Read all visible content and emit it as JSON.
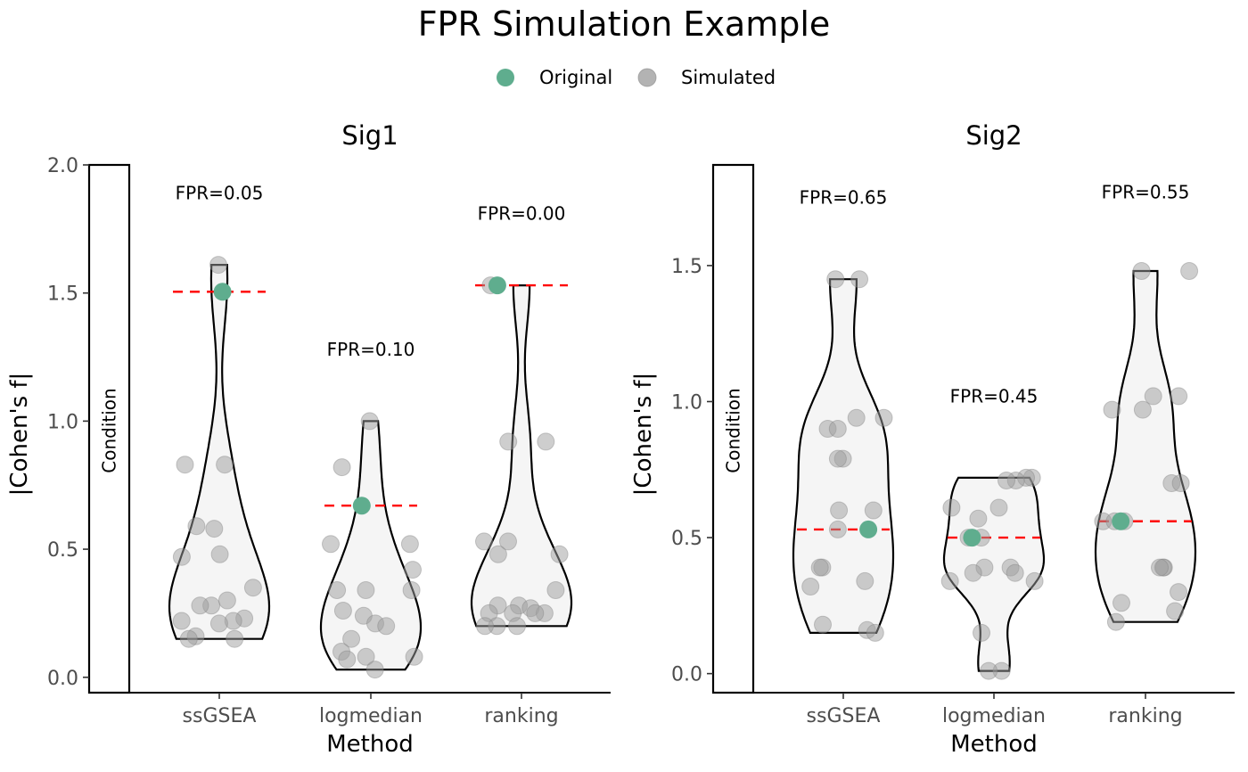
{
  "chart_data": {
    "type": "violin",
    "title": "FPR Simulation Example",
    "legend": {
      "position": "top",
      "items": [
        {
          "label": "Original",
          "color": "#5fad8e"
        },
        {
          "label": "Simulated",
          "color": "#a6a6a6"
        }
      ]
    },
    "xlabel": "Method",
    "ylabel": "|Cohen's f|",
    "strip_label": "Condition",
    "categories": [
      "ssGSEA",
      "logmedian",
      "ranking"
    ],
    "colors": {
      "original": "#5fad8e",
      "simulated": "#9e9e9e",
      "reference_line": "#ff0000",
      "violin_fill": "#f5f5f5"
    },
    "panels": [
      {
        "name": "Sig1",
        "ylim": [
          -0.06,
          2.0
        ],
        "yticks": [
          0.0,
          0.5,
          1.0,
          1.5,
          2.0
        ],
        "ytick_labels": [
          "0.0",
          "0.5",
          "1.0",
          "1.5",
          "2.0"
        ],
        "groups": [
          {
            "method": "ssGSEA",
            "fpr_label": "FPR=0.05",
            "fpr_label_y": 1.89,
            "original": 1.505,
            "simulated": [
              1.61,
              0.83,
              0.83,
              0.59,
              0.58,
              0.48,
              0.47,
              0.35,
              0.3,
              0.28,
              0.28,
              0.23,
              0.22,
              0.22,
              0.21,
              0.16,
              0.15,
              0.15
            ]
          },
          {
            "method": "logmedian",
            "fpr_label": "FPR=0.10",
            "fpr_label_y": 1.28,
            "original": 0.67,
            "simulated": [
              1.0,
              0.82,
              0.52,
              0.52,
              0.42,
              0.34,
              0.34,
              0.34,
              0.26,
              0.24,
              0.21,
              0.2,
              0.15,
              0.1,
              0.08,
              0.08,
              0.07,
              0.03
            ]
          },
          {
            "method": "ranking",
            "fpr_label": "FPR=0.00",
            "fpr_label_y": 1.81,
            "original": 1.53,
            "simulated": [
              1.53,
              0.92,
              0.92,
              0.53,
              0.53,
              0.48,
              0.48,
              0.34,
              0.28,
              0.28,
              0.27,
              0.25,
              0.25,
              0.25,
              0.25,
              0.2,
              0.2,
              0.2
            ]
          }
        ]
      },
      {
        "name": "Sig2",
        "ylim": [
          -0.07,
          1.87
        ],
        "yticks": [
          0.0,
          0.5,
          1.0,
          1.5
        ],
        "ytick_labels": [
          "0.0",
          "0.5",
          "1.0",
          "1.5"
        ],
        "groups": [
          {
            "method": "ssGSEA",
            "fpr_label": "FPR=0.65",
            "fpr_label_y": 1.75,
            "original": 0.53,
            "simulated": [
              1.45,
              1.45,
              0.94,
              0.94,
              0.9,
              0.9,
              0.79,
              0.79,
              0.6,
              0.6,
              0.53,
              0.39,
              0.39,
              0.34,
              0.32,
              0.18,
              0.16,
              0.15
            ]
          },
          {
            "method": "logmedian",
            "fpr_label": "FPR=0.45",
            "fpr_label_y": 1.02,
            "original": 0.5,
            "simulated": [
              0.72,
              0.72,
              0.71,
              0.71,
              0.61,
              0.61,
              0.57,
              0.5,
              0.5,
              0.39,
              0.39,
              0.37,
              0.37,
              0.34,
              0.34,
              0.15,
              0.01,
              0.01
            ]
          },
          {
            "method": "ranking",
            "fpr_label": "FPR=0.55",
            "fpr_label_y": 1.77,
            "original": 0.56,
            "simulated": [
              1.48,
              1.48,
              1.02,
              1.02,
              0.97,
              0.97,
              0.7,
              0.7,
              0.56,
              0.56,
              0.56,
              0.39,
              0.39,
              0.39,
              0.3,
              0.26,
              0.23,
              0.19
            ]
          }
        ]
      }
    ]
  }
}
